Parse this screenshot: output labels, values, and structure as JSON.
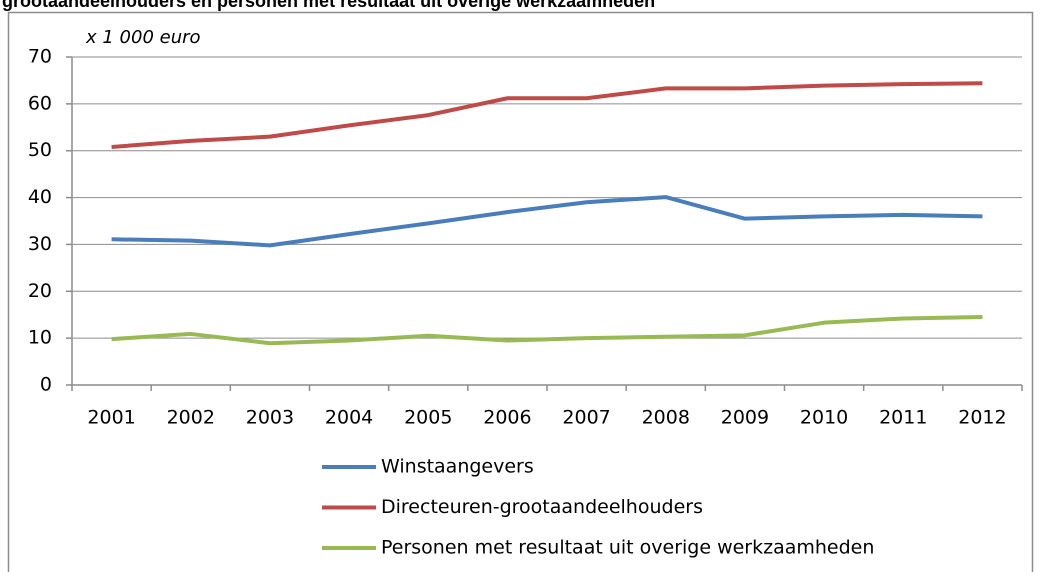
{
  "chart_data": {
    "type": "line",
    "title": "grootaandeelhouders en personen met resultaat uit overige werkzaamheden",
    "y_unit_label": "x 1 000 euro",
    "categories": [
      "2001",
      "2002",
      "2003",
      "2004",
      "2005",
      "2006",
      "2007",
      "2008",
      "2009",
      "2010",
      "2011",
      "2012"
    ],
    "series": [
      {
        "name": "Winstaangevers",
        "color": "#4a7ebb",
        "values": [
          31.1,
          30.8,
          29.8,
          32.2,
          34.5,
          36.9,
          39.0,
          40.1,
          35.5,
          36.0,
          36.3,
          36.0
        ]
      },
      {
        "name": "Directeuren-grootaandeelhouders",
        "color": "#be4b48",
        "values": [
          50.8,
          52.1,
          53.0,
          55.4,
          57.6,
          61.2,
          61.2,
          63.3,
          63.3,
          63.9,
          64.2,
          64.4
        ]
      },
      {
        "name": "Personen met resultaat uit overige werkzaamheden",
        "color": "#98b954",
        "values": [
          9.8,
          10.9,
          8.9,
          9.5,
          10.5,
          9.5,
          10.0,
          10.3,
          10.6,
          13.3,
          14.2,
          14.5
        ]
      }
    ],
    "ylim": [
      0,
      70
    ],
    "yticks": [
      0,
      10,
      20,
      30,
      40,
      50,
      60,
      70
    ],
    "grid": true,
    "legend": "bottom"
  }
}
